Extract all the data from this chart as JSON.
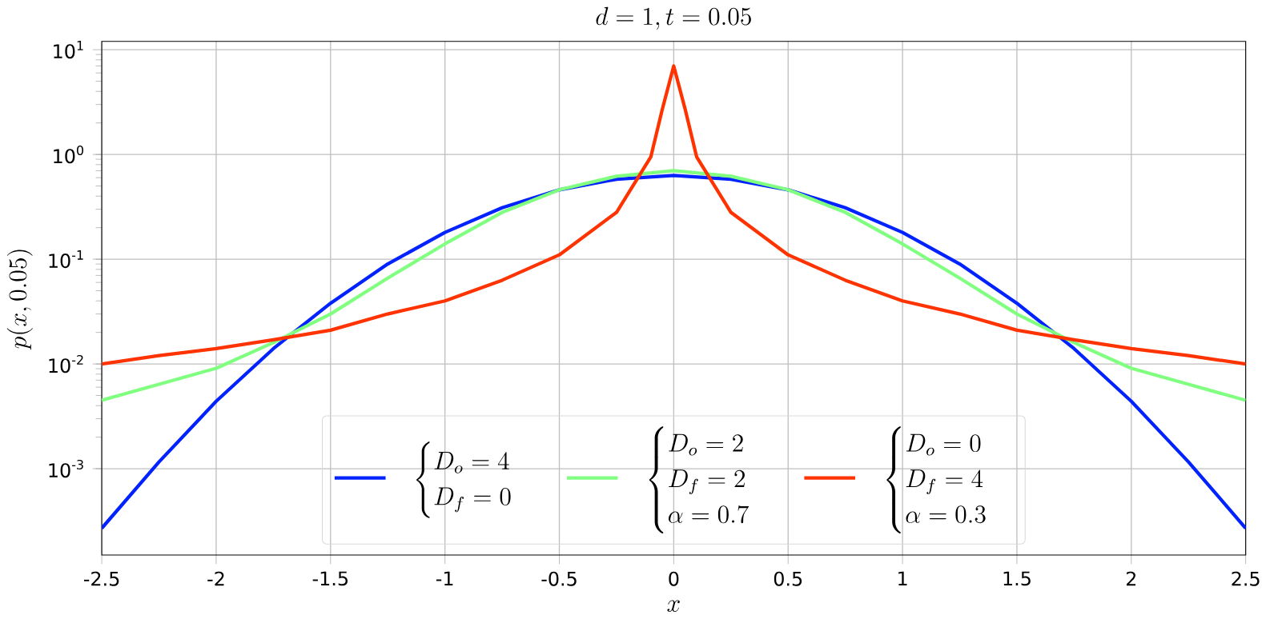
{
  "chart_data": {
    "type": "line",
    "title": "d=1, t=0.05",
    "xlabel": "x",
    "ylabel": "p(x,0.05)",
    "series": [
      {
        "name": "\\begin{cases}D_o=4\\\\ D_f=0\\end{cases}",
        "color": "#0022ff",
        "x": [
          -2.5,
          -2.25,
          -2,
          -1.75,
          -1.5,
          -1.25,
          -1,
          -0.75,
          -0.5,
          -0.25,
          0,
          0.25,
          0.5,
          0.75,
          1,
          1.25,
          1.5,
          1.75,
          2,
          2.25,
          2.5
        ],
        "values": [
          0.00027,
          0.00116,
          0.0044,
          0.014,
          0.038,
          0.09,
          0.18,
          0.31,
          0.46,
          0.58,
          0.63,
          0.58,
          0.46,
          0.31,
          0.18,
          0.09,
          0.038,
          0.014,
          0.0044,
          0.00116,
          0.00027
        ]
      },
      {
        "name": "\\begin{cases}D_o=2\\\\ D_f=2\\\\ \\alpha=0.7\\end{cases}",
        "color": "#80ff80",
        "x": [
          -2.5,
          -2.25,
          -2,
          -1.75,
          -1.5,
          -1.25,
          -1,
          -0.75,
          -0.5,
          -0.25,
          0,
          0.25,
          0.5,
          0.75,
          1,
          1.25,
          1.5,
          1.75,
          2,
          2.25,
          2.5
        ],
        "values": [
          0.0045,
          0.0064,
          0.0091,
          0.016,
          0.03,
          0.066,
          0.14,
          0.28,
          0.46,
          0.62,
          0.7,
          0.62,
          0.46,
          0.28,
          0.14,
          0.066,
          0.03,
          0.016,
          0.0091,
          0.0064,
          0.0045
        ]
      },
      {
        "name": "\\begin{cases}D_o=0\\\\ D_f=4\\\\ \\alpha=0.3\\end{cases}",
        "color": "#ff3300",
        "x": [
          -2.5,
          -2.25,
          -2,
          -1.75,
          -1.5,
          -1.25,
          -1,
          -0.75,
          -0.5,
          -0.25,
          -0.1,
          -0.05,
          0,
          0.05,
          0.1,
          0.25,
          0.5,
          0.75,
          1,
          1.25,
          1.5,
          1.75,
          2,
          2.25,
          2.5
        ],
        "values": [
          0.01,
          0.012,
          0.014,
          0.017,
          0.021,
          0.03,
          0.04,
          0.063,
          0.11,
          0.28,
          0.95,
          2.7,
          7.0,
          2.7,
          0.95,
          0.28,
          0.11,
          0.063,
          0.04,
          0.03,
          0.021,
          0.017,
          0.014,
          0.012,
          0.01
        ]
      }
    ],
    "xlim": [
      -2.5,
      2.5
    ],
    "xticks": [
      -2.5,
      -2,
      -1.5,
      -1,
      -0.5,
      0,
      0.5,
      1,
      1.5,
      2,
      2.5
    ],
    "ylim": [
      0.00015,
      12
    ],
    "yticks": [
      {
        "value": 0.001,
        "label": "10$^{-3}$"
      },
      {
        "value": 0.01,
        "label": "10$^{-2}$"
      },
      {
        "value": 0.1,
        "label": "10$^{-1}$"
      },
      {
        "value": 1,
        "label": "10$^{0}$"
      },
      {
        "value": 10,
        "label": "10$^{1}$"
      }
    ],
    "log": true,
    "grid": true,
    "legend": "bottom",
    "line_style": "solid"
  }
}
